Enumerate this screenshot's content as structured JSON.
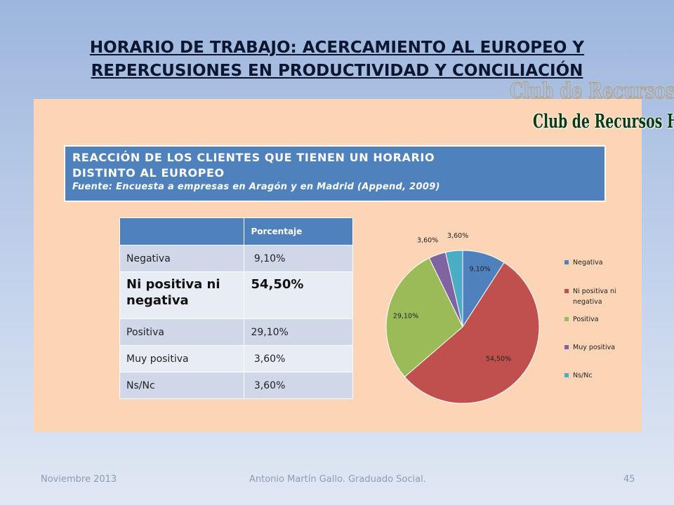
{
  "slide": {
    "title_line1": "HORARIO DE TRABAJO: ACERCAMIENTO AL EUROPEO Y",
    "title_line2": "REPERCUSIONES EN PRODUCTIVIDAD Y CONCILIACIÓN"
  },
  "logo": {
    "text": "Club de Recursos Humanos"
  },
  "header": {
    "line1": "REACCIÓN DE LOS CLIENTES QUE TIENEN UN HORARIO",
    "line2": "DISTINTO AL EUROPEO",
    "source": "Fuente: Encuesta a empresas en Aragón y en Madrid (Append, 2009)"
  },
  "table": {
    "header": [
      "",
      "Porcentaje"
    ],
    "rows": [
      [
        "Negativa",
        " 9,10%"
      ],
      [
        "Ni positiva ni negativa",
        "54,50%"
      ],
      [
        "Positiva",
        "29,10%"
      ],
      [
        "Muy positiva",
        " 3,60%"
      ],
      [
        "Ns/Nc",
        " 3,60%"
      ]
    ]
  },
  "chart_data": {
    "type": "pie",
    "categories": [
      "Negativa",
      "Ni positiva ni negativa",
      "Positiva",
      "Muy positiva",
      "Ns/Nc"
    ],
    "values": [
      9.1,
      54.5,
      29.1,
      3.6,
      3.6
    ],
    "data_labels": [
      "9,10%",
      "54,50%",
      "29,10%",
      "3,60%",
      "3,60%"
    ],
    "colors": [
      "#4f81bd",
      "#c0504d",
      "#9bbb59",
      "#8064a2",
      "#4bacc6"
    ],
    "legend_placement": "right"
  },
  "footer": {
    "date": "Noviembre 2013",
    "author": "Antonio Martín Gallo. Graduado Social.",
    "page": "45"
  }
}
